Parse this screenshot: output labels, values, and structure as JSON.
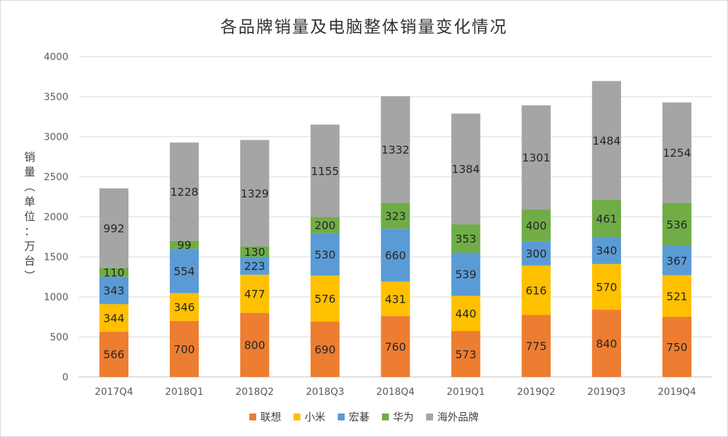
{
  "chart_data": {
    "type": "bar",
    "stacked": true,
    "title": "各品牌销量及电脑整体销量变化情况",
    "ylabel": "销量（单位：万台）",
    "xlabel": "",
    "categories": [
      "2017Q4",
      "2018Q1",
      "2018Q2",
      "2018Q3",
      "2018Q4",
      "2019Q1",
      "2019Q2",
      "2019Q3",
      "2019Q4"
    ],
    "ylim": [
      0,
      4000
    ],
    "yticks": [
      0,
      500,
      1000,
      1500,
      2000,
      2500,
      3000,
      3500,
      4000
    ],
    "grid": true,
    "legend_position": "bottom",
    "data_labels": true,
    "series": [
      {
        "name": "联想",
        "color": "#ed7d31",
        "values": [
          566,
          700,
          800,
          690,
          760,
          573,
          775,
          840,
          750
        ]
      },
      {
        "name": "小米",
        "color": "#ffc000",
        "values": [
          344,
          346,
          477,
          576,
          431,
          440,
          616,
          570,
          521
        ]
      },
      {
        "name": "宏碁",
        "color": "#5b9bd5",
        "values": [
          343,
          554,
          223,
          530,
          660,
          539,
          300,
          340,
          367
        ]
      },
      {
        "name": "华为",
        "color": "#70ad47",
        "values": [
          110,
          99,
          130,
          200,
          323,
          353,
          400,
          461,
          536
        ]
      },
      {
        "name": "海外品牌",
        "color": "#a5a5a5",
        "values": [
          992,
          1228,
          1329,
          1155,
          1332,
          1384,
          1301,
          1484,
          1254
        ]
      }
    ]
  }
}
